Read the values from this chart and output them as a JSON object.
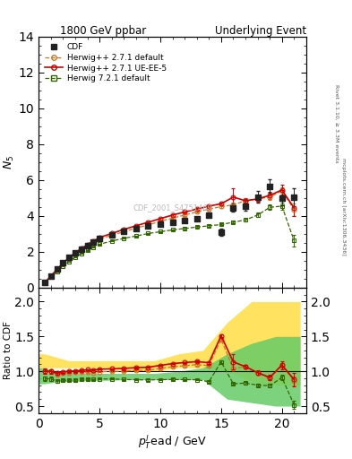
{
  "title_left": "1800 GeV ppbar",
  "title_right": "Underlying Event",
  "ylabel_main": "$N_5$",
  "ylabel_ratio": "Ratio to CDF",
  "xlabel": "$p_{T}^{l}$ead / GeV",
  "watermark": "CDF_2001_S4751469",
  "right_label": "Rivet 3.1.10, ≥ 3.3M events",
  "right_label2": "mcplots.cern.ch [arXiv:1306.3436]",
  "ylim_main": [
    0,
    14
  ],
  "ylim_ratio": [
    0.4,
    2.2
  ],
  "yticks_main": [
    0,
    2,
    4,
    6,
    8,
    10,
    12,
    14
  ],
  "yticks_ratio": [
    0.5,
    1.0,
    1.5,
    2.0
  ],
  "xlim": [
    0,
    22
  ],
  "cdf_x": [
    0.5,
    1.0,
    1.5,
    2.0,
    2.5,
    3.0,
    3.5,
    4.0,
    4.5,
    5.0,
    6.0,
    7.0,
    8.0,
    9.0,
    10.0,
    11.0,
    12.0,
    13.0,
    14.0,
    15.0,
    16.0,
    17.0,
    18.0,
    19.0,
    20.0,
    21.0
  ],
  "cdf_y": [
    0.28,
    0.65,
    1.05,
    1.38,
    1.68,
    1.95,
    2.15,
    2.35,
    2.55,
    2.72,
    2.92,
    3.12,
    3.28,
    3.45,
    3.55,
    3.65,
    3.75,
    3.85,
    4.05,
    3.1,
    4.45,
    4.55,
    5.05,
    5.65,
    5.0,
    5.05
  ],
  "cdf_yerr": [
    0.04,
    0.06,
    0.08,
    0.08,
    0.08,
    0.08,
    0.08,
    0.08,
    0.08,
    0.08,
    0.08,
    0.08,
    0.08,
    0.08,
    0.08,
    0.08,
    0.08,
    0.1,
    0.12,
    0.2,
    0.22,
    0.28,
    0.32,
    0.38,
    0.42,
    0.5
  ],
  "hw271_x": [
    0.5,
    1.0,
    1.5,
    2.0,
    2.5,
    3.0,
    3.5,
    4.0,
    4.5,
    5.0,
    6.0,
    7.0,
    8.0,
    9.0,
    10.0,
    11.0,
    12.0,
    13.0,
    14.0,
    15.0,
    16.0,
    17.0,
    18.0,
    19.0,
    20.0,
    21.0
  ],
  "hw271_y": [
    0.28,
    0.65,
    1.0,
    1.35,
    1.65,
    1.92,
    2.12,
    2.32,
    2.5,
    2.7,
    2.92,
    3.12,
    3.32,
    3.5,
    3.7,
    3.88,
    4.05,
    4.22,
    4.38,
    4.52,
    4.62,
    4.85,
    4.95,
    5.05,
    5.4,
    4.35
  ],
  "hw271_yerr": [
    0.01,
    0.02,
    0.02,
    0.02,
    0.02,
    0.02,
    0.02,
    0.02,
    0.02,
    0.02,
    0.03,
    0.03,
    0.03,
    0.03,
    0.04,
    0.04,
    0.04,
    0.05,
    0.05,
    0.06,
    0.08,
    0.1,
    0.12,
    0.15,
    0.2,
    0.35
  ],
  "hw271ue_x": [
    0.5,
    1.0,
    1.5,
    2.0,
    2.5,
    3.0,
    3.5,
    4.0,
    4.5,
    5.0,
    6.0,
    7.0,
    8.0,
    9.0,
    10.0,
    11.0,
    12.0,
    13.0,
    14.0,
    15.0,
    16.0,
    17.0,
    18.0,
    19.0,
    20.0,
    21.0
  ],
  "hw271ue_y": [
    0.28,
    0.65,
    1.02,
    1.37,
    1.68,
    1.96,
    2.18,
    2.4,
    2.6,
    2.8,
    3.02,
    3.25,
    3.45,
    3.65,
    3.85,
    4.05,
    4.22,
    4.38,
    4.55,
    4.68,
    5.05,
    4.85,
    4.95,
    5.15,
    5.45,
    4.45
  ],
  "hw271ue_yerr": [
    0.01,
    0.02,
    0.02,
    0.02,
    0.02,
    0.02,
    0.02,
    0.02,
    0.02,
    0.02,
    0.03,
    0.03,
    0.03,
    0.03,
    0.04,
    0.04,
    0.04,
    0.05,
    0.05,
    0.06,
    0.5,
    0.12,
    0.15,
    0.2,
    0.28,
    0.48
  ],
  "hw721_x": [
    0.5,
    1.0,
    1.5,
    2.0,
    2.5,
    3.0,
    3.5,
    4.0,
    4.5,
    5.0,
    6.0,
    7.0,
    8.0,
    9.0,
    10.0,
    11.0,
    12.0,
    13.0,
    14.0,
    15.0,
    16.0,
    17.0,
    18.0,
    19.0,
    20.0,
    21.0
  ],
  "hw721_y": [
    0.25,
    0.58,
    0.9,
    1.2,
    1.46,
    1.7,
    1.9,
    2.08,
    2.25,
    2.42,
    2.6,
    2.75,
    2.88,
    3.02,
    3.12,
    3.22,
    3.3,
    3.38,
    3.45,
    3.52,
    3.65,
    3.78,
    4.05,
    4.48,
    4.55,
    2.62
  ],
  "hw721_yerr": [
    0.01,
    0.02,
    0.02,
    0.02,
    0.02,
    0.02,
    0.02,
    0.02,
    0.02,
    0.02,
    0.03,
    0.03,
    0.03,
    0.03,
    0.03,
    0.04,
    0.04,
    0.04,
    0.05,
    0.05,
    0.07,
    0.09,
    0.12,
    0.15,
    0.2,
    0.32
  ],
  "cdf_color": "#222222",
  "hw271_color": "#cc7722",
  "hw271ue_color": "#cc0000",
  "hw721_color": "#336600",
  "band_hw271_color": "#ffdd44",
  "band_hw721_color": "#66cc66",
  "band_hw271_x": [
    0,
    0.5,
    1.5,
    2.5,
    4.5,
    5.5,
    7.5,
    9.5,
    11.5,
    13.5,
    15.5,
    17.5,
    19.5,
    21.5
  ],
  "band_hw271_lo": [
    1.05,
    1.05,
    1.05,
    1.05,
    1.05,
    1.05,
    1.0,
    1.0,
    1.05,
    1.05,
    1.0,
    0.85,
    0.8,
    0.8
  ],
  "band_hw271_hi": [
    1.25,
    1.25,
    1.2,
    1.15,
    1.15,
    1.15,
    1.15,
    1.15,
    1.25,
    1.3,
    1.7,
    2.0,
    2.0,
    2.0
  ],
  "band_hw721_x": [
    0,
    0.5,
    1.5,
    2.5,
    4.5,
    5.5,
    7.5,
    9.5,
    11.5,
    13.5,
    15.5,
    17.5,
    19.5,
    21.5
  ],
  "band_hw721_lo": [
    0.82,
    0.82,
    0.85,
    0.85,
    0.87,
    0.87,
    0.88,
    0.88,
    0.88,
    0.88,
    0.6,
    0.55,
    0.5,
    0.5
  ],
  "band_hw721_hi": [
    1.05,
    1.05,
    1.0,
    0.98,
    0.97,
    0.97,
    0.97,
    0.97,
    1.0,
    1.05,
    1.25,
    1.4,
    1.5,
    1.5
  ]
}
